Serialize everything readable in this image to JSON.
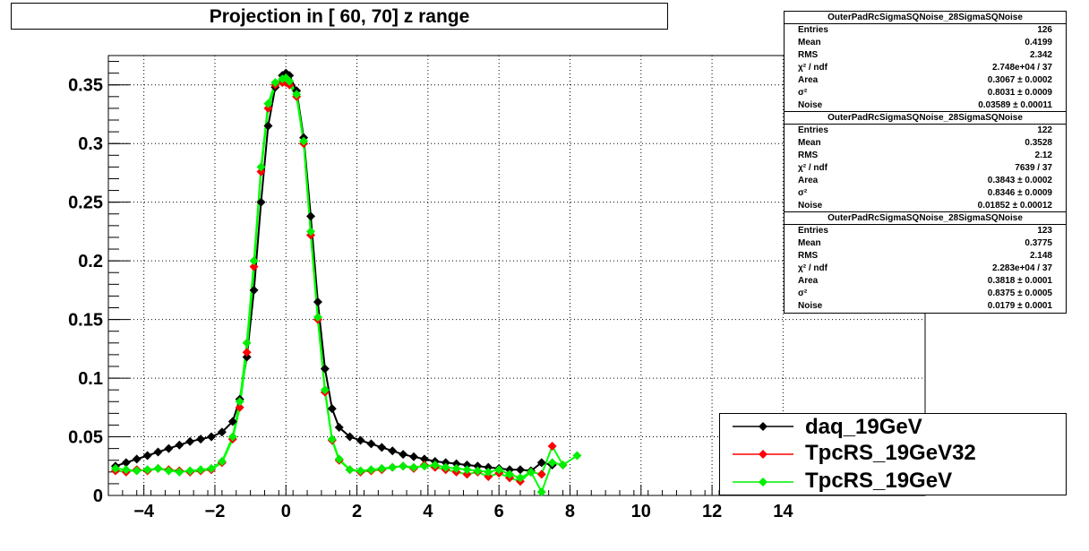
{
  "title": "Projection in [  60,  70] z range",
  "colors": {
    "daq": "#000000",
    "tpcrs32": "#ff0000",
    "tpcrs": "#00ee00",
    "fit": "#00ff00"
  },
  "chart_data": {
    "type": "scatter",
    "xlim": [
      -5,
      18
    ],
    "ylim": [
      0,
      0.375
    ],
    "x_ticks": [
      "-4",
      "-2",
      "0",
      "2",
      "4",
      "6",
      "8",
      "10",
      "12",
      "14"
    ],
    "y_ticks": [
      "0",
      "0.05",
      "0.1",
      "0.15",
      "0.2",
      "0.25",
      "0.3",
      "0.35"
    ],
    "grid": true,
    "legend_position": "bottom-right",
    "series": [
      {
        "name": "daq_19GeV",
        "color": "#000000",
        "x": [
          -4.8,
          -4.5,
          -4.2,
          -3.9,
          -3.6,
          -3.3,
          -3.0,
          -2.7,
          -2.4,
          -2.1,
          -1.8,
          -1.5,
          -1.3,
          -1.1,
          -0.9,
          -0.7,
          -0.5,
          -0.3,
          -0.1,
          0.0,
          0.1,
          0.3,
          0.5,
          0.7,
          0.9,
          1.1,
          1.3,
          1.5,
          1.8,
          2.1,
          2.4,
          2.7,
          3.0,
          3.3,
          3.6,
          3.9,
          4.2,
          4.5,
          4.8,
          5.1,
          5.4,
          5.7,
          6.0,
          6.3,
          6.6,
          6.9,
          7.2,
          7.5
        ],
        "y": [
          0.025,
          0.028,
          0.031,
          0.034,
          0.037,
          0.04,
          0.043,
          0.046,
          0.048,
          0.05,
          0.054,
          0.063,
          0.082,
          0.118,
          0.175,
          0.25,
          0.315,
          0.348,
          0.358,
          0.36,
          0.358,
          0.345,
          0.305,
          0.238,
          0.165,
          0.108,
          0.074,
          0.058,
          0.05,
          0.047,
          0.044,
          0.041,
          0.038,
          0.035,
          0.033,
          0.031,
          0.029,
          0.028,
          0.027,
          0.026,
          0.025,
          0.024,
          0.023,
          0.022,
          0.022,
          0.021,
          0.028,
          0.026
        ]
      },
      {
        "name": "TpcRS_19GeV32",
        "color": "#ff0000",
        "x": [
          -4.8,
          -4.5,
          -4.2,
          -3.9,
          -3.6,
          -3.3,
          -3.0,
          -2.7,
          -2.4,
          -2.1,
          -1.8,
          -1.5,
          -1.3,
          -1.1,
          -0.9,
          -0.7,
          -0.5,
          -0.3,
          -0.1,
          0.0,
          0.1,
          0.3,
          0.5,
          0.7,
          0.9,
          1.1,
          1.3,
          1.5,
          1.8,
          2.1,
          2.4,
          2.7,
          3.0,
          3.3,
          3.6,
          3.9,
          4.2,
          4.5,
          4.8,
          5.1,
          5.4,
          5.7,
          6.0,
          6.3,
          6.6,
          6.9,
          7.2,
          7.5,
          7.8
        ],
        "y": [
          0.021,
          0.02,
          0.022,
          0.021,
          0.023,
          0.022,
          0.021,
          0.02,
          0.021,
          0.022,
          0.028,
          0.048,
          0.075,
          0.122,
          0.195,
          0.276,
          0.33,
          0.35,
          0.352,
          0.352,
          0.35,
          0.34,
          0.3,
          0.222,
          0.15,
          0.088,
          0.047,
          0.03,
          0.022,
          0.02,
          0.021,
          0.022,
          0.024,
          0.025,
          0.023,
          0.026,
          0.024,
          0.022,
          0.02,
          0.018,
          0.02,
          0.016,
          0.019,
          0.015,
          0.012,
          0.02,
          0.018,
          0.042,
          0.026
        ]
      },
      {
        "name": "TpcRS_19GeV",
        "color": "#00ee00",
        "x": [
          -4.8,
          -4.5,
          -4.2,
          -3.9,
          -3.6,
          -3.3,
          -3.0,
          -2.7,
          -2.4,
          -2.1,
          -1.8,
          -1.5,
          -1.3,
          -1.1,
          -0.9,
          -0.7,
          -0.5,
          -0.3,
          -0.1,
          0.0,
          0.1,
          0.3,
          0.5,
          0.7,
          0.9,
          1.1,
          1.3,
          1.5,
          1.8,
          2.1,
          2.4,
          2.7,
          3.0,
          3.3,
          3.6,
          3.9,
          4.2,
          4.5,
          4.8,
          5.1,
          5.4,
          5.7,
          6.0,
          6.3,
          6.6,
          6.9,
          7.2,
          7.5,
          7.8,
          8.2
        ],
        "y": [
          0.023,
          0.022,
          0.021,
          0.022,
          0.023,
          0.021,
          0.02,
          0.021,
          0.022,
          0.023,
          0.029,
          0.05,
          0.08,
          0.13,
          0.2,
          0.28,
          0.334,
          0.352,
          0.355,
          0.356,
          0.353,
          0.342,
          0.302,
          0.225,
          0.152,
          0.09,
          0.048,
          0.031,
          0.022,
          0.021,
          0.022,
          0.023,
          0.024,
          0.025,
          0.024,
          0.025,
          0.026,
          0.024,
          0.023,
          0.022,
          0.021,
          0.02,
          0.022,
          0.018,
          0.015,
          0.02,
          0.003,
          0.028,
          0.026,
          0.034
        ]
      }
    ]
  },
  "stats_boxes": [
    {
      "title": "OuterPadRcSigmaSQNoise_28SigmaSQNoise",
      "rows": [
        {
          "k": "Entries",
          "v": "126"
        },
        {
          "k": "Mean",
          "v": "0.4199"
        },
        {
          "k": "RMS",
          "v": "2.342"
        },
        {
          "k": "χ² / ndf",
          "v": "2.748e+04 / 37"
        },
        {
          "k": "Area",
          "v": "0.3067 ± 0.0002"
        },
        {
          "k": "σ²",
          "v": "0.8031 ± 0.0009"
        },
        {
          "k": "Noise",
          "v": "0.03589 ± 0.00011"
        }
      ]
    },
    {
      "title": "OuterPadRcSigmaSQNoise_28SigmaSQNoise",
      "rows": [
        {
          "k": "Entries",
          "v": "122"
        },
        {
          "k": "Mean",
          "v": "0.3528"
        },
        {
          "k": "RMS",
          "v": "2.12"
        },
        {
          "k": "χ² / ndf",
          "v": "7639 / 37"
        },
        {
          "k": "Area",
          "v": "0.3843 ± 0.0002"
        },
        {
          "k": "σ²",
          "v": "0.8346 ± 0.0009"
        },
        {
          "k": "Noise",
          "v": "0.01852 ± 0.00012"
        }
      ]
    },
    {
      "title": "OuterPadRcSigmaSQNoise_28SigmaSQNoise",
      "rows": [
        {
          "k": "Entries",
          "v": "123"
        },
        {
          "k": "Mean",
          "v": "0.3775"
        },
        {
          "k": "RMS",
          "v": "2.148"
        },
        {
          "k": "χ² / ndf",
          "v": "2.283e+04 / 37"
        },
        {
          "k": "Area",
          "v": "0.3818 ± 0.0001"
        },
        {
          "k": "σ²",
          "v": "0.8375 ± 0.0005"
        },
        {
          "k": "Noise",
          "v": "0.0179 ± 0.0001"
        }
      ]
    }
  ],
  "legend": {
    "items": [
      {
        "label": "daq_19GeV",
        "color": "#000000"
      },
      {
        "label": "TpcRS_19GeV32",
        "color": "#ff0000"
      },
      {
        "label": "TpcRS_19GeV",
        "color": "#00ee00"
      }
    ]
  }
}
